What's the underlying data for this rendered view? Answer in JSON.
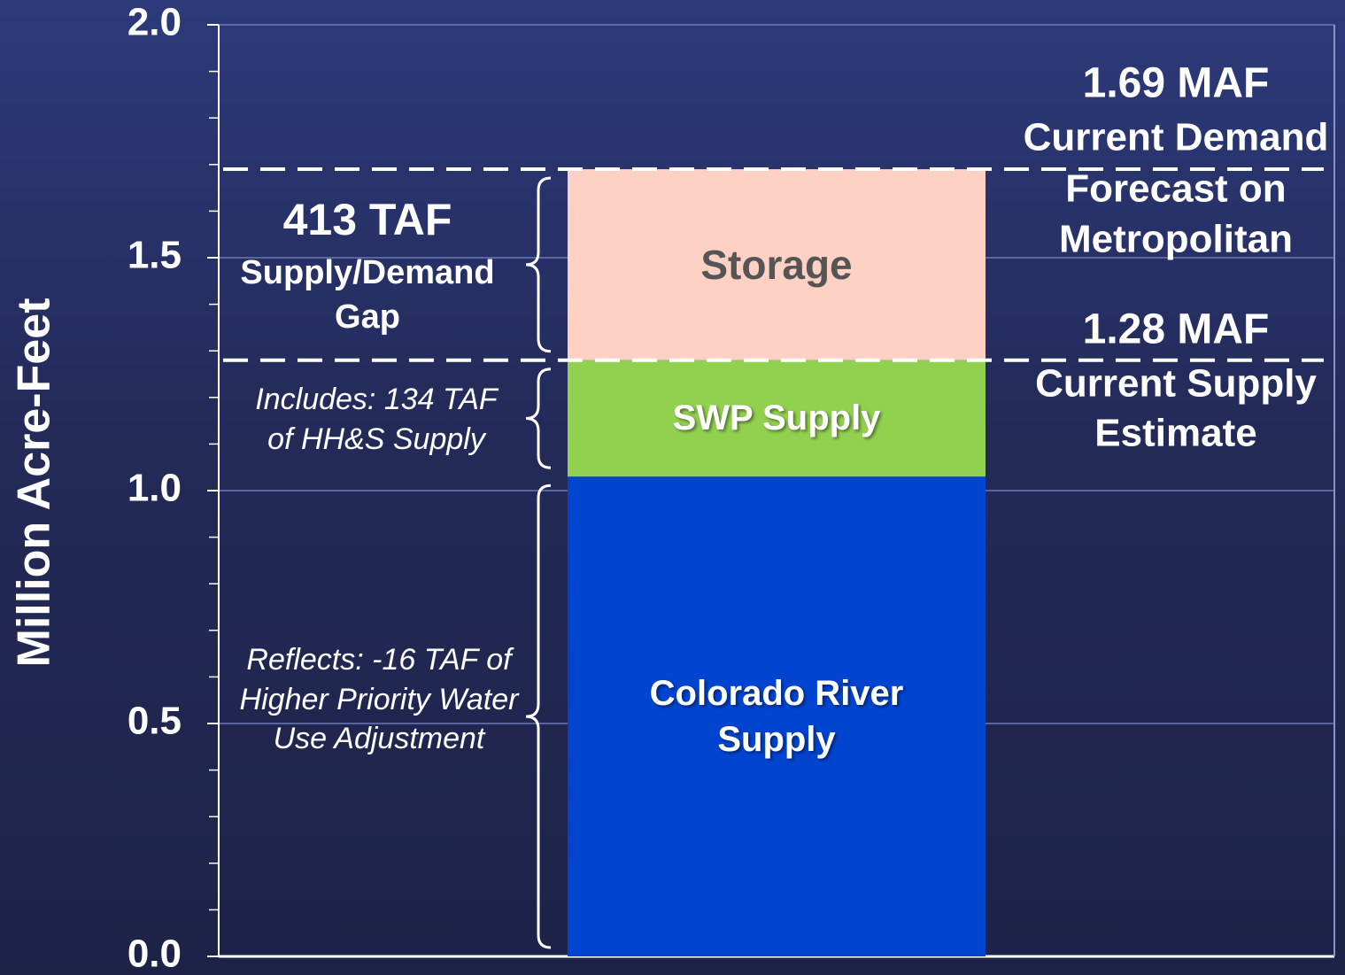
{
  "chart_data": {
    "type": "stacked_bar",
    "y_label": "Million Acre-Feet",
    "ylim": [
      0,
      2.0
    ],
    "yticks": [
      {
        "value": 0,
        "label": "0.0"
      },
      0.5,
      {
        "value": 1,
        "label": "1.0"
      },
      1.5,
      {
        "value": 2,
        "label": "2.0"
      }
    ],
    "minor_yticks": [
      0.1,
      0.2,
      0.3,
      0.4,
      0.6,
      0.7,
      0.8,
      0.9,
      1.1,
      1.2,
      1.3,
      1.4,
      1.6,
      1.7,
      1.8,
      1.9
    ],
    "grid": true,
    "series": [
      {
        "name": "Colorado River Supply",
        "color": "#0044d0",
        "label_color": "#ffffff",
        "values": [
          1.03
        ]
      },
      {
        "name": "SWP Supply",
        "color": "#92d050",
        "label_color": "#ffffff",
        "values": [
          0.25
        ]
      },
      {
        "name": "Storage",
        "color": "#ffd0c4",
        "label_color": "#555555",
        "values": [
          0.41
        ]
      }
    ],
    "reference_lines": [
      {
        "value": 1.69,
        "label": "1.69 MAF",
        "lines": [
          "Current Demand",
          "Forecast on",
          "Metropolitan"
        ]
      },
      {
        "value": 1.28,
        "label": "1.28 MAF",
        "lines": [
          "Current Supply",
          "Estimate"
        ]
      }
    ],
    "annotations": [
      {
        "lines": [
          "Reflects: -16 TAF of",
          "Higher Priority Water",
          "Use Adjustment"
        ]
      },
      {
        "lines": [
          "Includes: 134 TAF",
          "of HH&S Supply"
        ]
      },
      {
        "title": "413 TAF",
        "lines": [
          "Supply/Demand",
          "Gap"
        ]
      }
    ]
  }
}
